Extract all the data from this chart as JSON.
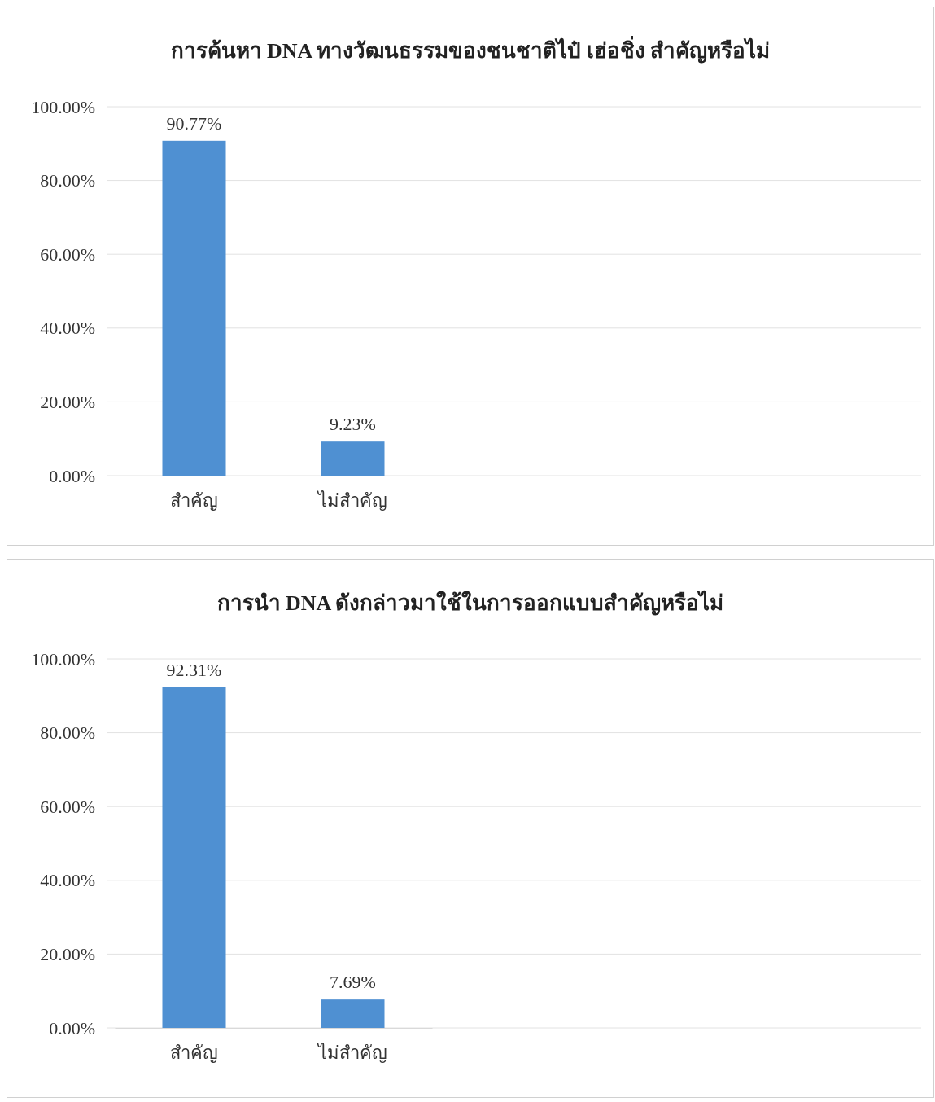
{
  "chart_data": [
    {
      "type": "bar",
      "title": "การค้นหา DNA ทางวัฒนธรรมของชนชาติไป๋ เฮ่อชิ่ง สำคัญหรือไม่",
      "categories": [
        "สำคัญ",
        "ไม่สำคัญ"
      ],
      "values": [
        90.77,
        9.23
      ],
      "value_labels": [
        "90.77%",
        "9.23%"
      ],
      "color": "#4f90d2",
      "ylim": [
        0,
        100
      ],
      "yticks": [
        {
          "value": 0,
          "label": "0.00%"
        },
        {
          "value": 20,
          "label": "20.00%"
        },
        {
          "value": 40,
          "label": "40.00%"
        },
        {
          "value": 60,
          "label": "60.00%"
        },
        {
          "value": 80,
          "label": "80.00%"
        },
        {
          "value": 100,
          "label": "100.00%"
        }
      ],
      "grid": "y"
    },
    {
      "type": "bar",
      "title": "การนำ DNA ดังกล่าวมาใช้ในการออกแบบสำคัญหรือไม่",
      "categories": [
        "สำคัญ",
        "ไม่สำคัญ"
      ],
      "values": [
        92.31,
        7.69
      ],
      "value_labels": [
        "92.31%",
        "7.69%"
      ],
      "color": "#4f90d2",
      "ylim": [
        0,
        100
      ],
      "yticks": [
        {
          "value": 0,
          "label": "0.00%"
        },
        {
          "value": 20,
          "label": "20.00%"
        },
        {
          "value": 40,
          "label": "40.00%"
        },
        {
          "value": 60,
          "label": "60.00%"
        },
        {
          "value": 80,
          "label": "80.00%"
        },
        {
          "value": 100,
          "label": "100.00%"
        }
      ],
      "grid": "y"
    }
  ]
}
